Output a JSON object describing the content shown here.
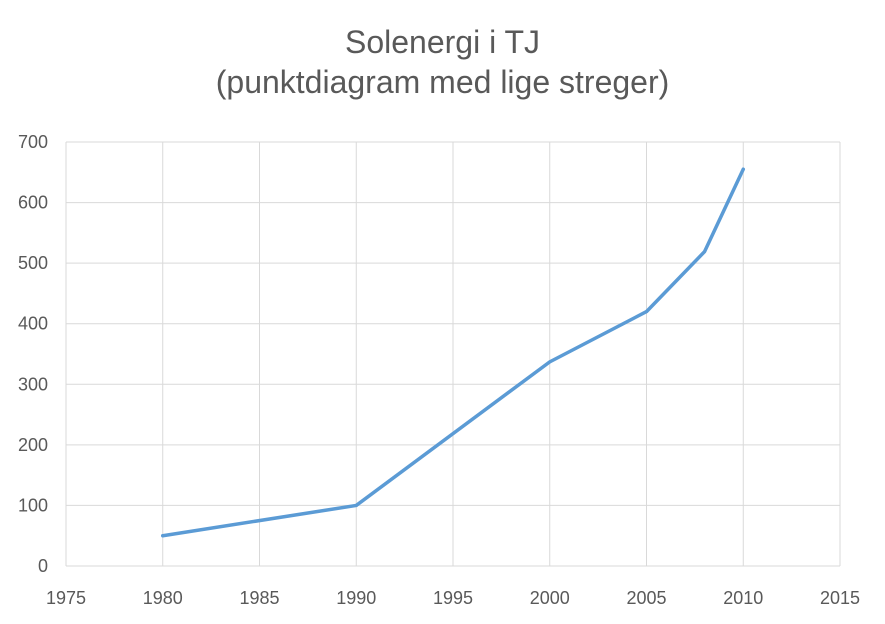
{
  "chart_data": {
    "type": "line",
    "title_line1": "Solenergi i TJ",
    "title_line2": "(punktdiagram med lige streger)",
    "xlabel": "",
    "ylabel": "",
    "xlim": [
      1975,
      2015
    ],
    "ylim": [
      0,
      700
    ],
    "xticks": [
      1975,
      1980,
      1985,
      1990,
      1995,
      2000,
      2005,
      2010,
      2015
    ],
    "yticks": [
      0,
      100,
      200,
      300,
      400,
      500,
      600,
      700
    ],
    "grid": true,
    "legend": "none",
    "series": [
      {
        "color": "#5B9BD5",
        "x": [
          1980,
          1990,
          2000,
          2005,
          2008,
          2010
        ],
        "y": [
          50,
          100,
          337,
          420,
          519,
          655
        ]
      }
    ]
  }
}
